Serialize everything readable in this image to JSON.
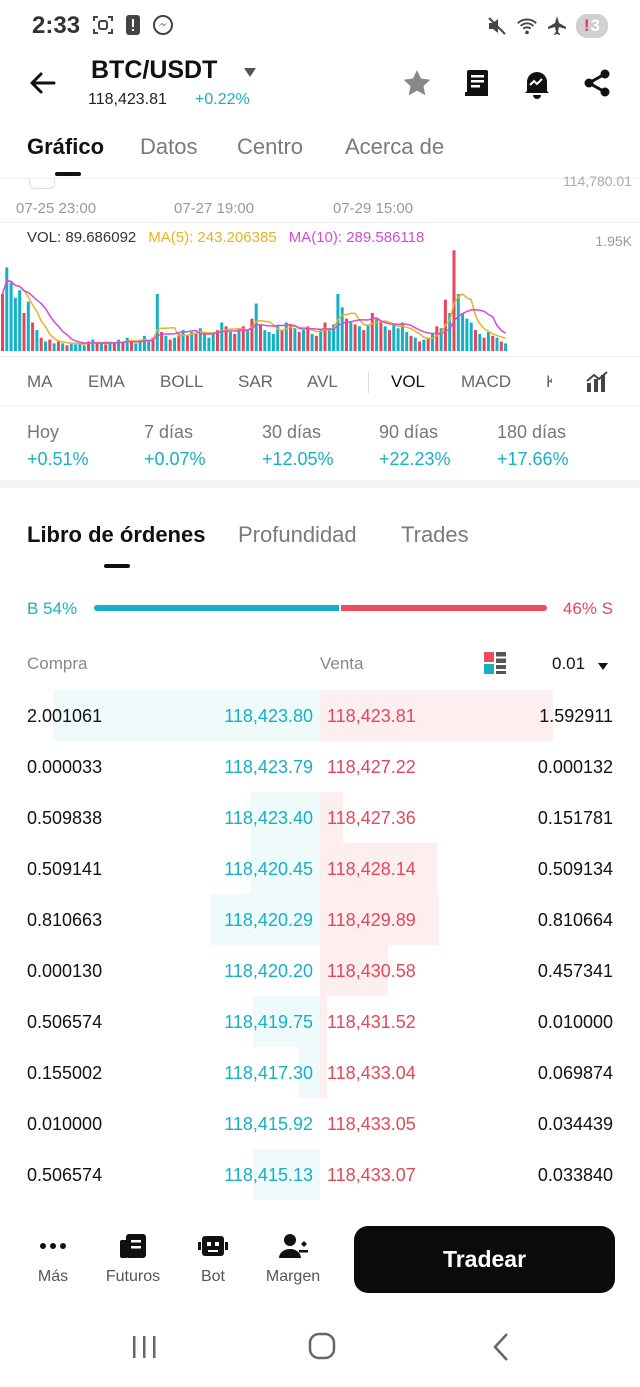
{
  "status": {
    "time": "2:33",
    "notif_mark": "!",
    "notif_count": "3",
    "icons": [
      "screenshot-icon",
      "alert-icon",
      "messenger-icon",
      "mute-icon",
      "wifi-icon",
      "airplane-icon"
    ]
  },
  "header": {
    "pair": "BTC/USDT",
    "price": "118,423.81",
    "change": "+0.22%",
    "icons": [
      "back-arrow-icon",
      "star-icon",
      "book-icon",
      "alert-bell-icon",
      "share-icon"
    ]
  },
  "main_tabs": [
    "Gráfico",
    "Datos",
    "Centro",
    "Acerca de"
  ],
  "chart": {
    "top_y_label": "114,780.01",
    "x_ticks": [
      "07-25 23:00",
      "07-27 19:00",
      "07-29 15:00"
    ],
    "vol_label": "VOL: 89.686092",
    "ma5_label": "MA(5): 243.206385",
    "ma10_label": "MA(10): 289.586118",
    "y_max_label": "1.95K",
    "colors": {
      "up": "#14b1c4",
      "down": "#e5475a",
      "ma5": "#e6b422",
      "ma10": "#d64bd6"
    }
  },
  "indicators": {
    "items": [
      "MA",
      "EMA",
      "BOLL",
      "SAR",
      "AVL",
      "VOL",
      "MACD",
      "K"
    ],
    "active": "VOL"
  },
  "performance": [
    {
      "label": "Hoy",
      "value": "+0.51%"
    },
    {
      "label": "7 días",
      "value": "+0.07%"
    },
    {
      "label": "30 días",
      "value": "+12.05%"
    },
    {
      "label": "90 días",
      "value": "+22.23%"
    },
    {
      "label": "180 días",
      "value": "+17.66%"
    }
  ],
  "orderbook_tabs": [
    "Libro de órdenes",
    "Profundidad",
    "Trades"
  ],
  "ratio": {
    "buy_label": "B 54%",
    "sell_label": "46% S",
    "buy_fraction": 0.54
  },
  "orderbook_header": {
    "buy": "Compra",
    "sell": "Venta",
    "precision": "0.01"
  },
  "orderbook": [
    {
      "bid_qty": "2.001061",
      "bid_price": "118,423.80",
      "ask_price": "118,423.81",
      "ask_qty": "1.592911",
      "bid_depth": 1.0,
      "ask_depth": 1.0
    },
    {
      "bid_qty": "0.000033",
      "bid_price": "118,423.79",
      "ask_price": "118,427.22",
      "ask_qty": "0.000132",
      "bid_depth": 0.0,
      "ask_depth": 0.0
    },
    {
      "bid_qty": "0.509838",
      "bid_price": "118,423.40",
      "ask_price": "118,427.36",
      "ask_qty": "0.151781",
      "bid_depth": 0.26,
      "ask_depth": 0.1
    },
    {
      "bid_qty": "0.509141",
      "bid_price": "118,420.45",
      "ask_price": "118,428.14",
      "ask_qty": "0.509134",
      "bid_depth": 0.26,
      "ask_depth": 0.5
    },
    {
      "bid_qty": "0.810663",
      "bid_price": "118,420.29",
      "ask_price": "118,429.89",
      "ask_qty": "0.810664",
      "bid_depth": 0.41,
      "ask_depth": 0.51
    },
    {
      "bid_qty": "0.000130",
      "bid_price": "118,420.20",
      "ask_price": "118,430.58",
      "ask_qty": "0.457341",
      "bid_depth": 0.0,
      "ask_depth": 0.29
    },
    {
      "bid_qty": "0.506574",
      "bid_price": "118,419.75",
      "ask_price": "118,431.52",
      "ask_qty": "0.010000",
      "bid_depth": 0.25,
      "ask_depth": 0.03
    },
    {
      "bid_qty": "0.155002",
      "bid_price": "118,417.30",
      "ask_price": "118,433.04",
      "ask_qty": "0.069874",
      "bid_depth": 0.08,
      "ask_depth": 0.03
    },
    {
      "bid_qty": "0.010000",
      "bid_price": "118,415.92",
      "ask_price": "118,433.05",
      "ask_qty": "0.034439",
      "bid_depth": 0.0,
      "ask_depth": 0.0
    },
    {
      "bid_qty": "0.506574",
      "bid_price": "118,415.13",
      "ask_price": "118,433.07",
      "ask_qty": "0.033840",
      "bid_depth": 0.25,
      "ask_depth": 0.0
    }
  ],
  "bottom_nav": {
    "items": [
      {
        "label": "Más",
        "icon": "more-icon"
      },
      {
        "label": "Futuros",
        "icon": "futures-icon"
      },
      {
        "label": "Bot",
        "icon": "bot-icon"
      },
      {
        "label": "Margen",
        "icon": "margin-icon"
      }
    ],
    "trade_label": "Tradear"
  },
  "system_nav": [
    "recents-icon",
    "home-icon",
    "back-icon"
  ]
}
